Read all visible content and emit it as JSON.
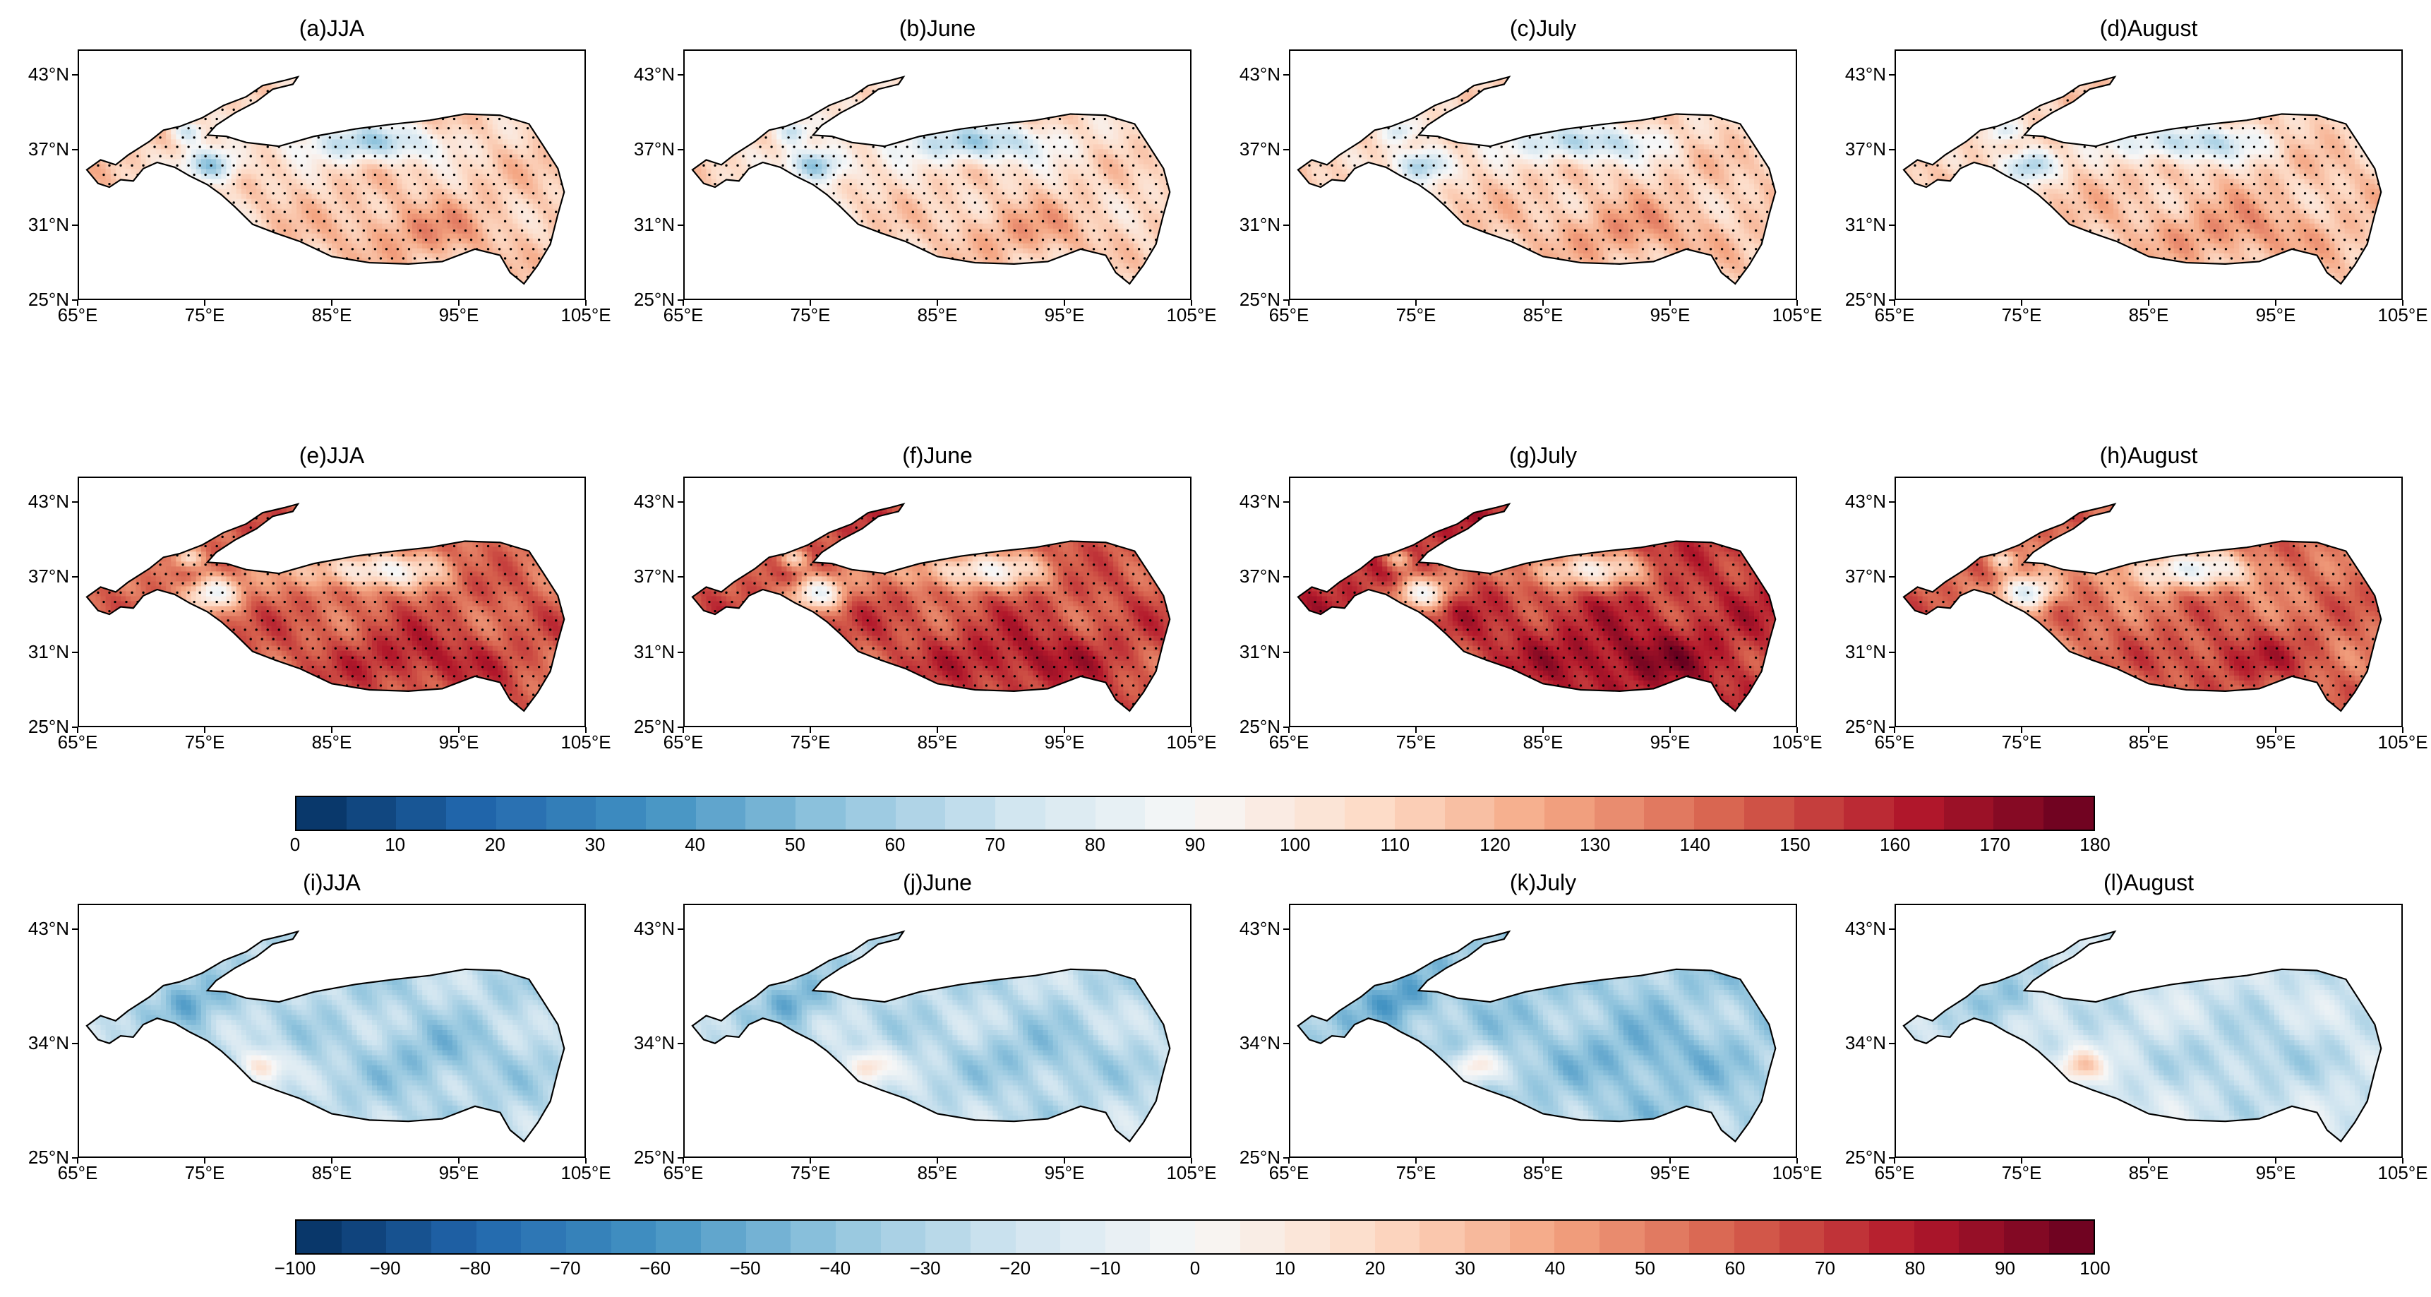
{
  "figure": {
    "rows": [
      {
        "y_ticks": [
          "43°N",
          "37°N",
          "31°N",
          "25°N"
        ],
        "panels": [
          {
            "label": "(a)JJA",
            "scheme": "pos",
            "level": 0.62
          },
          {
            "label": "(b)June",
            "scheme": "pos",
            "level": 0.6
          },
          {
            "label": "(c)July",
            "scheme": "pos",
            "level": 0.62
          },
          {
            "label": "(d)August",
            "scheme": "pos",
            "level": 0.63
          }
        ]
      },
      {
        "y_ticks": [
          "43°N",
          "37°N",
          "31°N",
          "25°N"
        ],
        "panels": [
          {
            "label": "(e)JJA",
            "scheme": "pos",
            "level": 0.8
          },
          {
            "label": "(f)June",
            "scheme": "pos",
            "level": 0.82
          },
          {
            "label": "(g)July",
            "scheme": "pos",
            "level": 0.86
          },
          {
            "label": "(h)August",
            "scheme": "pos",
            "level": 0.78
          }
        ]
      },
      {
        "y_ticks": [
          "43°N",
          "34°N",
          "25°N"
        ],
        "panels": [
          {
            "label": "(i)JJA",
            "scheme": "div",
            "level": 0.36
          },
          {
            "label": "(j)June",
            "scheme": "div",
            "level": 0.37
          },
          {
            "label": "(k)July",
            "scheme": "div",
            "level": 0.33
          },
          {
            "label": "(l)August",
            "scheme": "div",
            "level": 0.4
          }
        ]
      }
    ],
    "x_ticks": [
      "65°E",
      "75°E",
      "85°E",
      "95°E",
      "105°E"
    ],
    "colorbar_top": {
      "min": 0,
      "max": 180,
      "segments": 36,
      "labels": [
        "0",
        "10",
        "20",
        "30",
        "40",
        "50",
        "60",
        "70",
        "80",
        "90",
        "100",
        "110",
        "120",
        "130",
        "140",
        "150",
        "160",
        "170",
        "180"
      ]
    },
    "colorbar_bottom": {
      "min": -100,
      "max": 100,
      "segments": 40,
      "labels": [
        "−100",
        "−90",
        "−80",
        "−70",
        "−60",
        "−50",
        "−40",
        "−30",
        "−20",
        "−10",
        "0",
        "10",
        "20",
        "30",
        "40",
        "50",
        "60",
        "70",
        "80",
        "90",
        "100"
      ]
    },
    "colors": {
      "ramp": [
        "#053061",
        "#2166ac",
        "#4393c3",
        "#92c5de",
        "#d1e5f0",
        "#f7f7f7",
        "#fddbc7",
        "#f4a582",
        "#d6604d",
        "#b2182b",
        "#67001f"
      ],
      "outline": "#000000",
      "stipple": "#000000"
    }
  }
}
